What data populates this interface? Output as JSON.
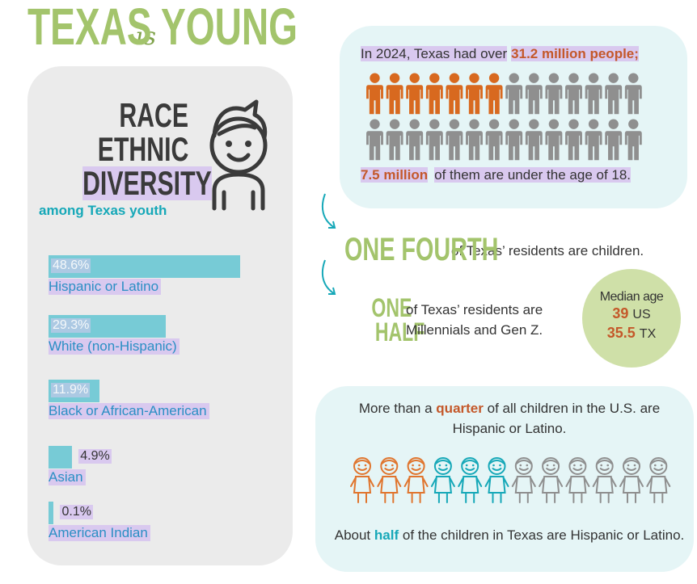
{
  "title": {
    "first": "TEXAS",
    "middle": "is",
    "last": "YOUNG"
  },
  "race": {
    "heading": [
      "RACE",
      "ETHNIC",
      "DIVERSITY"
    ],
    "subheading": "among Texas youth",
    "bars": [
      {
        "value": 48.6,
        "value_label": "48.6%",
        "label": "Hispanic or Latino"
      },
      {
        "value": 29.3,
        "value_label": "29.3%",
        "label": "White (non-Hispanic)"
      },
      {
        "value": 11.9,
        "value_label": "11.9%",
        "label": "Black or African-American"
      },
      {
        "value": 4.9,
        "value_label": "4.9%",
        "label": "Asian"
      },
      {
        "value": 0.1,
        "value_label": "0.1%",
        "label": "American Indian"
      }
    ]
  },
  "population": {
    "pre": "In 2024, Texas had over",
    "total": "31.2 million people;",
    "under18": "7.5 million",
    "post": "of them are under the age of 18.",
    "icons_per_row": 14,
    "icon_rows": 2,
    "icons_highlighted": 7
  },
  "children_fact": {
    "highlight": "ONE FOURTH",
    "text": "of Texas’ residents are children."
  },
  "millennials_fact": {
    "highlight": [
      "ONE",
      "HALF"
    ],
    "text": [
      "of Texas’ residents are",
      "Millennials and Gen Z."
    ]
  },
  "median_age": {
    "label": "Median age",
    "rows": [
      {
        "value": "39",
        "place": "US"
      },
      {
        "value": "35.5",
        "place": "TX"
      }
    ]
  },
  "kids": {
    "pre": "More than a",
    "highlight": "quarter",
    "post": "of all children in the U.S. are Hispanic or Latino.",
    "total": 12,
    "us_hispanic": 3,
    "tx_hispanic": 6,
    "bottom_pre": "About",
    "bottom_highlight": "half",
    "bottom_post": "of the children in Texas are Hispanic or Latino."
  }
}
